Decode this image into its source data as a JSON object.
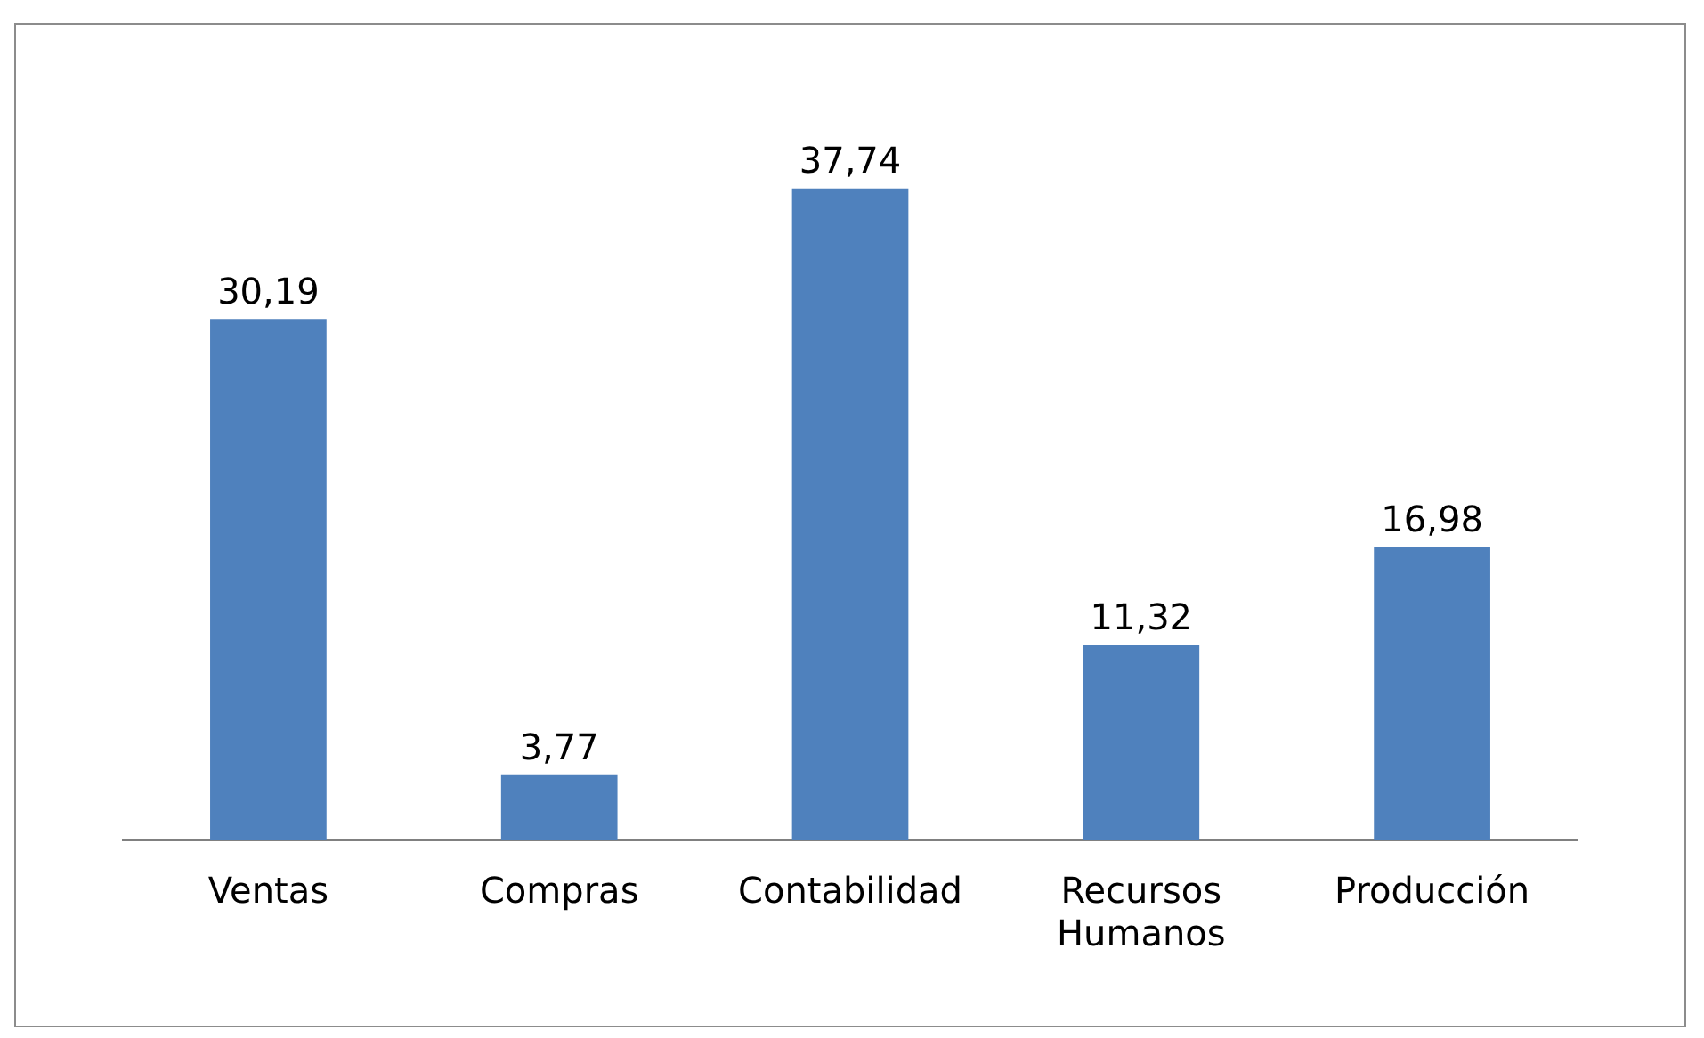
{
  "chart_data": {
    "type": "bar",
    "categories": [
      "Ventas",
      "Compras",
      "Contabilidad",
      "Recursos Humanos",
      "Producción"
    ],
    "values": [
      30.19,
      3.77,
      37.74,
      11.32,
      16.98
    ],
    "value_labels": [
      "30,19",
      "3,77",
      "37,74",
      "11,32",
      "16,98"
    ],
    "color": "#4f81bd",
    "grid": false,
    "legend": false
  }
}
